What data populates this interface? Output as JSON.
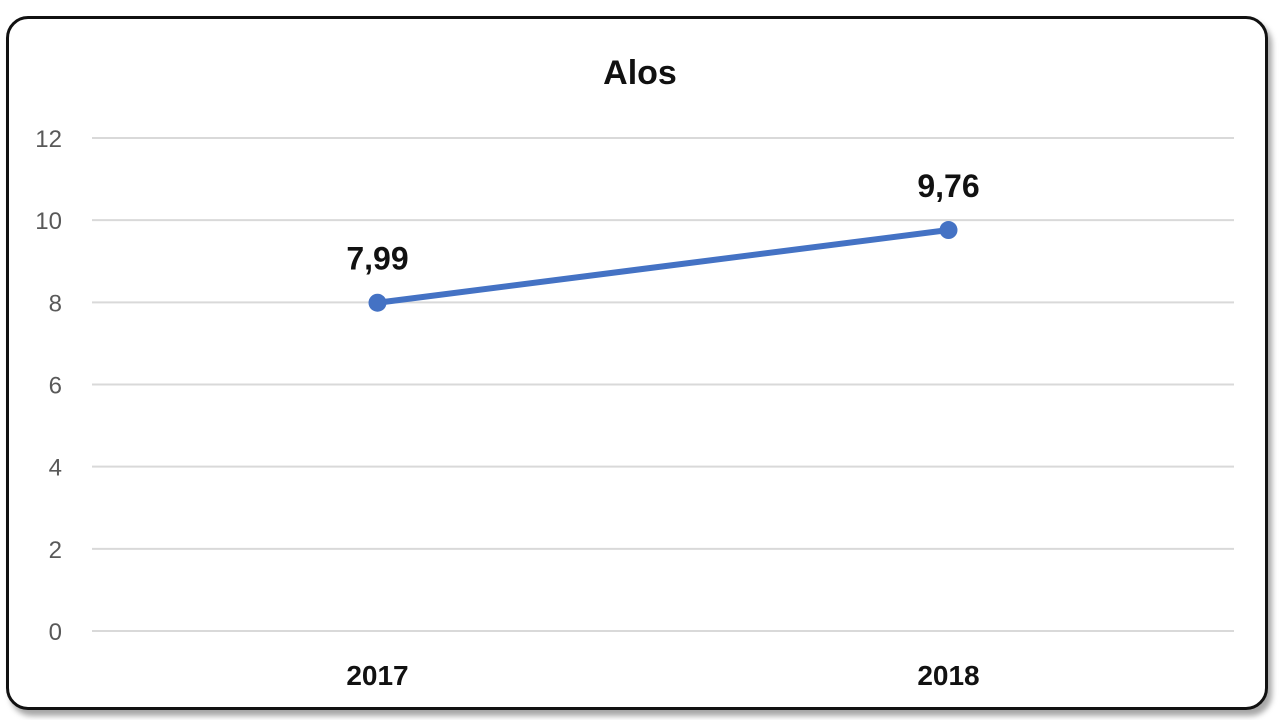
{
  "chart_data": {
    "type": "line",
    "title": "Alos",
    "categories": [
      "2017",
      "2018"
    ],
    "series": [
      {
        "values": [
          7.99,
          9.76
        ],
        "labels": [
          "7,99",
          "9,76"
        ],
        "color": "#4472C4"
      }
    ],
    "ylim": [
      0,
      12
    ],
    "yticks": [
      "0",
      "2",
      "4",
      "6",
      "8",
      "10",
      "12"
    ],
    "grid": true,
    "legend": "none",
    "xlabel": "",
    "ylabel": ""
  }
}
